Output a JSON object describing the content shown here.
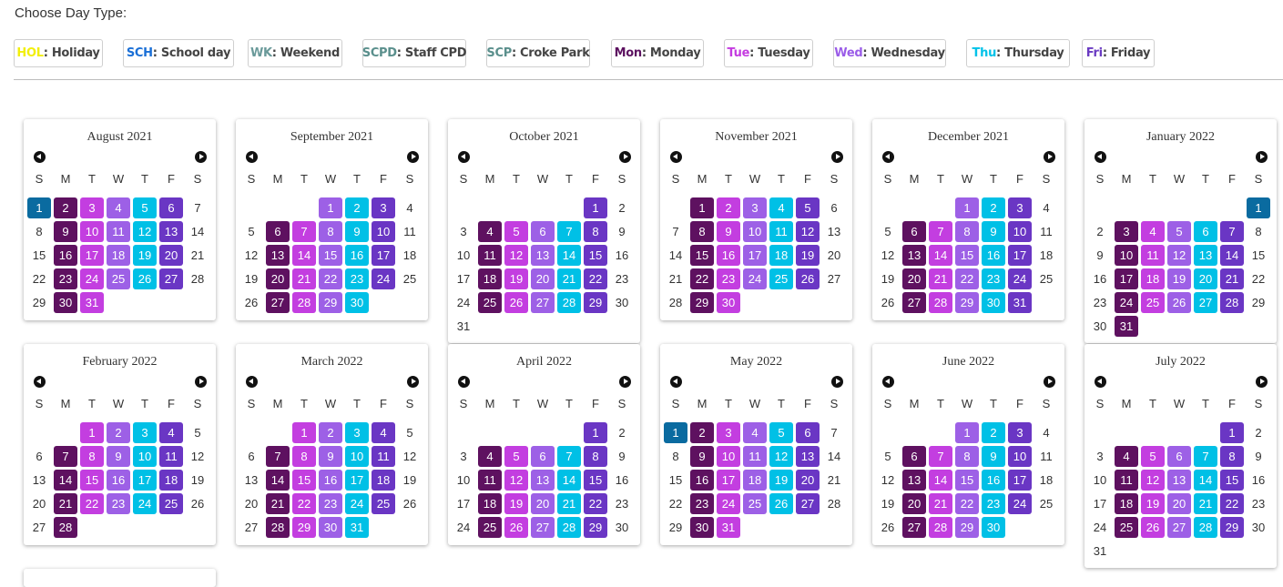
{
  "title": "Choose Day Type:",
  "legend": [
    {
      "code": "HOL",
      "label": ": Holiday",
      "color": "#f2ef0c"
    },
    {
      "code": "SCH",
      "label": ": School day",
      "color": "#1a6fd6"
    },
    {
      "code": "WK",
      "label": ": Weekend",
      "color": "#6a9a9a"
    },
    {
      "code": "SCPD",
      "label": ": Staff CPD",
      "color": "#5a8f8c"
    },
    {
      "code": "SCP",
      "label": ": Croke Park",
      "color": "#5a8f8c"
    },
    {
      "code": "Mon",
      "label": ": Monday",
      "color": "#5c1160"
    },
    {
      "code": "Tue",
      "label": ": Tuesday",
      "color": "#c43be0"
    },
    {
      "code": "Wed",
      "label": ": Wednesday",
      "color": "#9a5ce8"
    },
    {
      "code": "Thu",
      "label": ": Thursday",
      "color": "#00c2e8"
    },
    {
      "code": "Fri",
      "label": ": Friday",
      "color": "#6a3bc2"
    }
  ],
  "weekdays": [
    "S",
    "M",
    "T",
    "W",
    "T",
    "F",
    "S"
  ],
  "colors": {
    "H": "#0a6ba0",
    "M": "#5e1160",
    "T": "#c33ee0",
    "W": "#9d60e6",
    "R": "#00c0e6",
    "F": "#6a36c4"
  },
  "months": [
    {
      "name": "August 2021",
      "start": 0,
      "days": 31,
      "tags": {
        "1": "H",
        "2": "M",
        "3": "T",
        "4": "W",
        "5": "R",
        "6": "F",
        "9": "M",
        "10": "T",
        "11": "W",
        "12": "R",
        "13": "F",
        "16": "M",
        "17": "T",
        "18": "W",
        "19": "R",
        "20": "F",
        "23": "M",
        "24": "T",
        "25": "W",
        "26": "R",
        "27": "F",
        "30": "M",
        "31": "T"
      }
    },
    {
      "name": "September 2021",
      "start": 3,
      "days": 30,
      "tags": {
        "1": "W",
        "2": "R",
        "3": "F",
        "6": "M",
        "7": "T",
        "8": "W",
        "9": "R",
        "10": "F",
        "13": "M",
        "14": "T",
        "15": "W",
        "16": "R",
        "17": "F",
        "20": "M",
        "21": "T",
        "22": "W",
        "23": "R",
        "24": "F",
        "27": "M",
        "28": "T",
        "29": "W",
        "30": "R"
      }
    },
    {
      "name": "October 2021",
      "start": 5,
      "days": 31,
      "tags": {
        "1": "F",
        "4": "M",
        "5": "T",
        "6": "W",
        "7": "R",
        "8": "F",
        "11": "M",
        "12": "T",
        "13": "W",
        "14": "R",
        "15": "F",
        "18": "M",
        "19": "T",
        "20": "W",
        "21": "R",
        "22": "F",
        "25": "M",
        "26": "T",
        "27": "W",
        "28": "R",
        "29": "F"
      }
    },
    {
      "name": "November 2021",
      "start": 1,
      "days": 30,
      "tags": {
        "1": "M",
        "2": "T",
        "3": "W",
        "4": "R",
        "5": "F",
        "8": "M",
        "9": "T",
        "10": "W",
        "11": "R",
        "12": "F",
        "15": "M",
        "16": "T",
        "17": "W",
        "18": "R",
        "19": "F",
        "22": "M",
        "23": "T",
        "24": "W",
        "25": "R",
        "26": "F",
        "29": "M",
        "30": "T"
      }
    },
    {
      "name": "December 2021",
      "start": 3,
      "days": 31,
      "tags": {
        "1": "W",
        "2": "R",
        "3": "F",
        "6": "M",
        "7": "T",
        "8": "W",
        "9": "R",
        "10": "F",
        "13": "M",
        "14": "T",
        "15": "W",
        "16": "R",
        "17": "F",
        "20": "M",
        "21": "T",
        "22": "W",
        "23": "R",
        "24": "F",
        "27": "M",
        "28": "T",
        "29": "W",
        "30": "R",
        "31": "F"
      }
    },
    {
      "name": "January 2022",
      "start": 6,
      "days": 31,
      "tags": {
        "1": "H",
        "3": "M",
        "4": "T",
        "5": "W",
        "6": "R",
        "7": "F",
        "10": "M",
        "11": "T",
        "12": "W",
        "13": "R",
        "14": "F",
        "17": "M",
        "18": "T",
        "19": "W",
        "20": "R",
        "21": "F",
        "24": "M",
        "25": "T",
        "26": "W",
        "27": "R",
        "28": "F",
        "31": "M"
      }
    },
    {
      "name": "February 2022",
      "start": 2,
      "days": 28,
      "tags": {
        "1": "T",
        "2": "W",
        "3": "R",
        "4": "F",
        "7": "M",
        "8": "T",
        "9": "W",
        "10": "R",
        "11": "F",
        "14": "M",
        "15": "T",
        "16": "W",
        "17": "R",
        "18": "F",
        "21": "M",
        "22": "T",
        "23": "W",
        "24": "R",
        "25": "F",
        "28": "M"
      }
    },
    {
      "name": "March 2022",
      "start": 2,
      "days": 31,
      "tags": {
        "1": "T",
        "2": "W",
        "3": "R",
        "4": "F",
        "7": "M",
        "8": "T",
        "9": "W",
        "10": "R",
        "11": "F",
        "14": "M",
        "15": "T",
        "16": "W",
        "17": "R",
        "18": "F",
        "21": "M",
        "22": "T",
        "23": "W",
        "24": "R",
        "25": "F",
        "28": "M",
        "29": "T",
        "30": "W",
        "31": "R"
      }
    },
    {
      "name": "April 2022",
      "start": 5,
      "days": 30,
      "tags": {
        "1": "F",
        "4": "M",
        "5": "T",
        "6": "W",
        "7": "R",
        "8": "F",
        "11": "M",
        "12": "T",
        "13": "W",
        "14": "R",
        "15": "F",
        "18": "M",
        "19": "T",
        "20": "W",
        "21": "R",
        "22": "F",
        "25": "M",
        "26": "T",
        "27": "W",
        "28": "R",
        "29": "F"
      }
    },
    {
      "name": "May 2022",
      "start": 0,
      "days": 31,
      "tags": {
        "1": "H",
        "2": "M",
        "3": "T",
        "4": "W",
        "5": "R",
        "6": "F",
        "9": "M",
        "10": "T",
        "11": "W",
        "12": "R",
        "13": "F",
        "16": "M",
        "17": "T",
        "18": "W",
        "19": "R",
        "20": "F",
        "23": "M",
        "24": "T",
        "25": "W",
        "26": "R",
        "27": "F",
        "30": "M",
        "31": "T"
      }
    },
    {
      "name": "June 2022",
      "start": 3,
      "days": 30,
      "tags": {
        "1": "W",
        "2": "R",
        "3": "F",
        "6": "M",
        "7": "T",
        "8": "W",
        "9": "R",
        "10": "F",
        "13": "M",
        "14": "T",
        "15": "W",
        "16": "R",
        "17": "F",
        "20": "M",
        "21": "T",
        "22": "W",
        "23": "R",
        "24": "F",
        "27": "M",
        "28": "T",
        "29": "W",
        "30": "R"
      }
    },
    {
      "name": "July 2022",
      "start": 5,
      "days": 31,
      "tags": {
        "1": "F",
        "4": "M",
        "5": "T",
        "6": "W",
        "7": "R",
        "8": "F",
        "11": "M",
        "12": "T",
        "13": "W",
        "14": "R",
        "15": "F",
        "18": "M",
        "19": "T",
        "20": "W",
        "21": "R",
        "22": "F",
        "25": "M",
        "26": "T",
        "27": "W",
        "28": "R",
        "29": "F"
      }
    }
  ]
}
